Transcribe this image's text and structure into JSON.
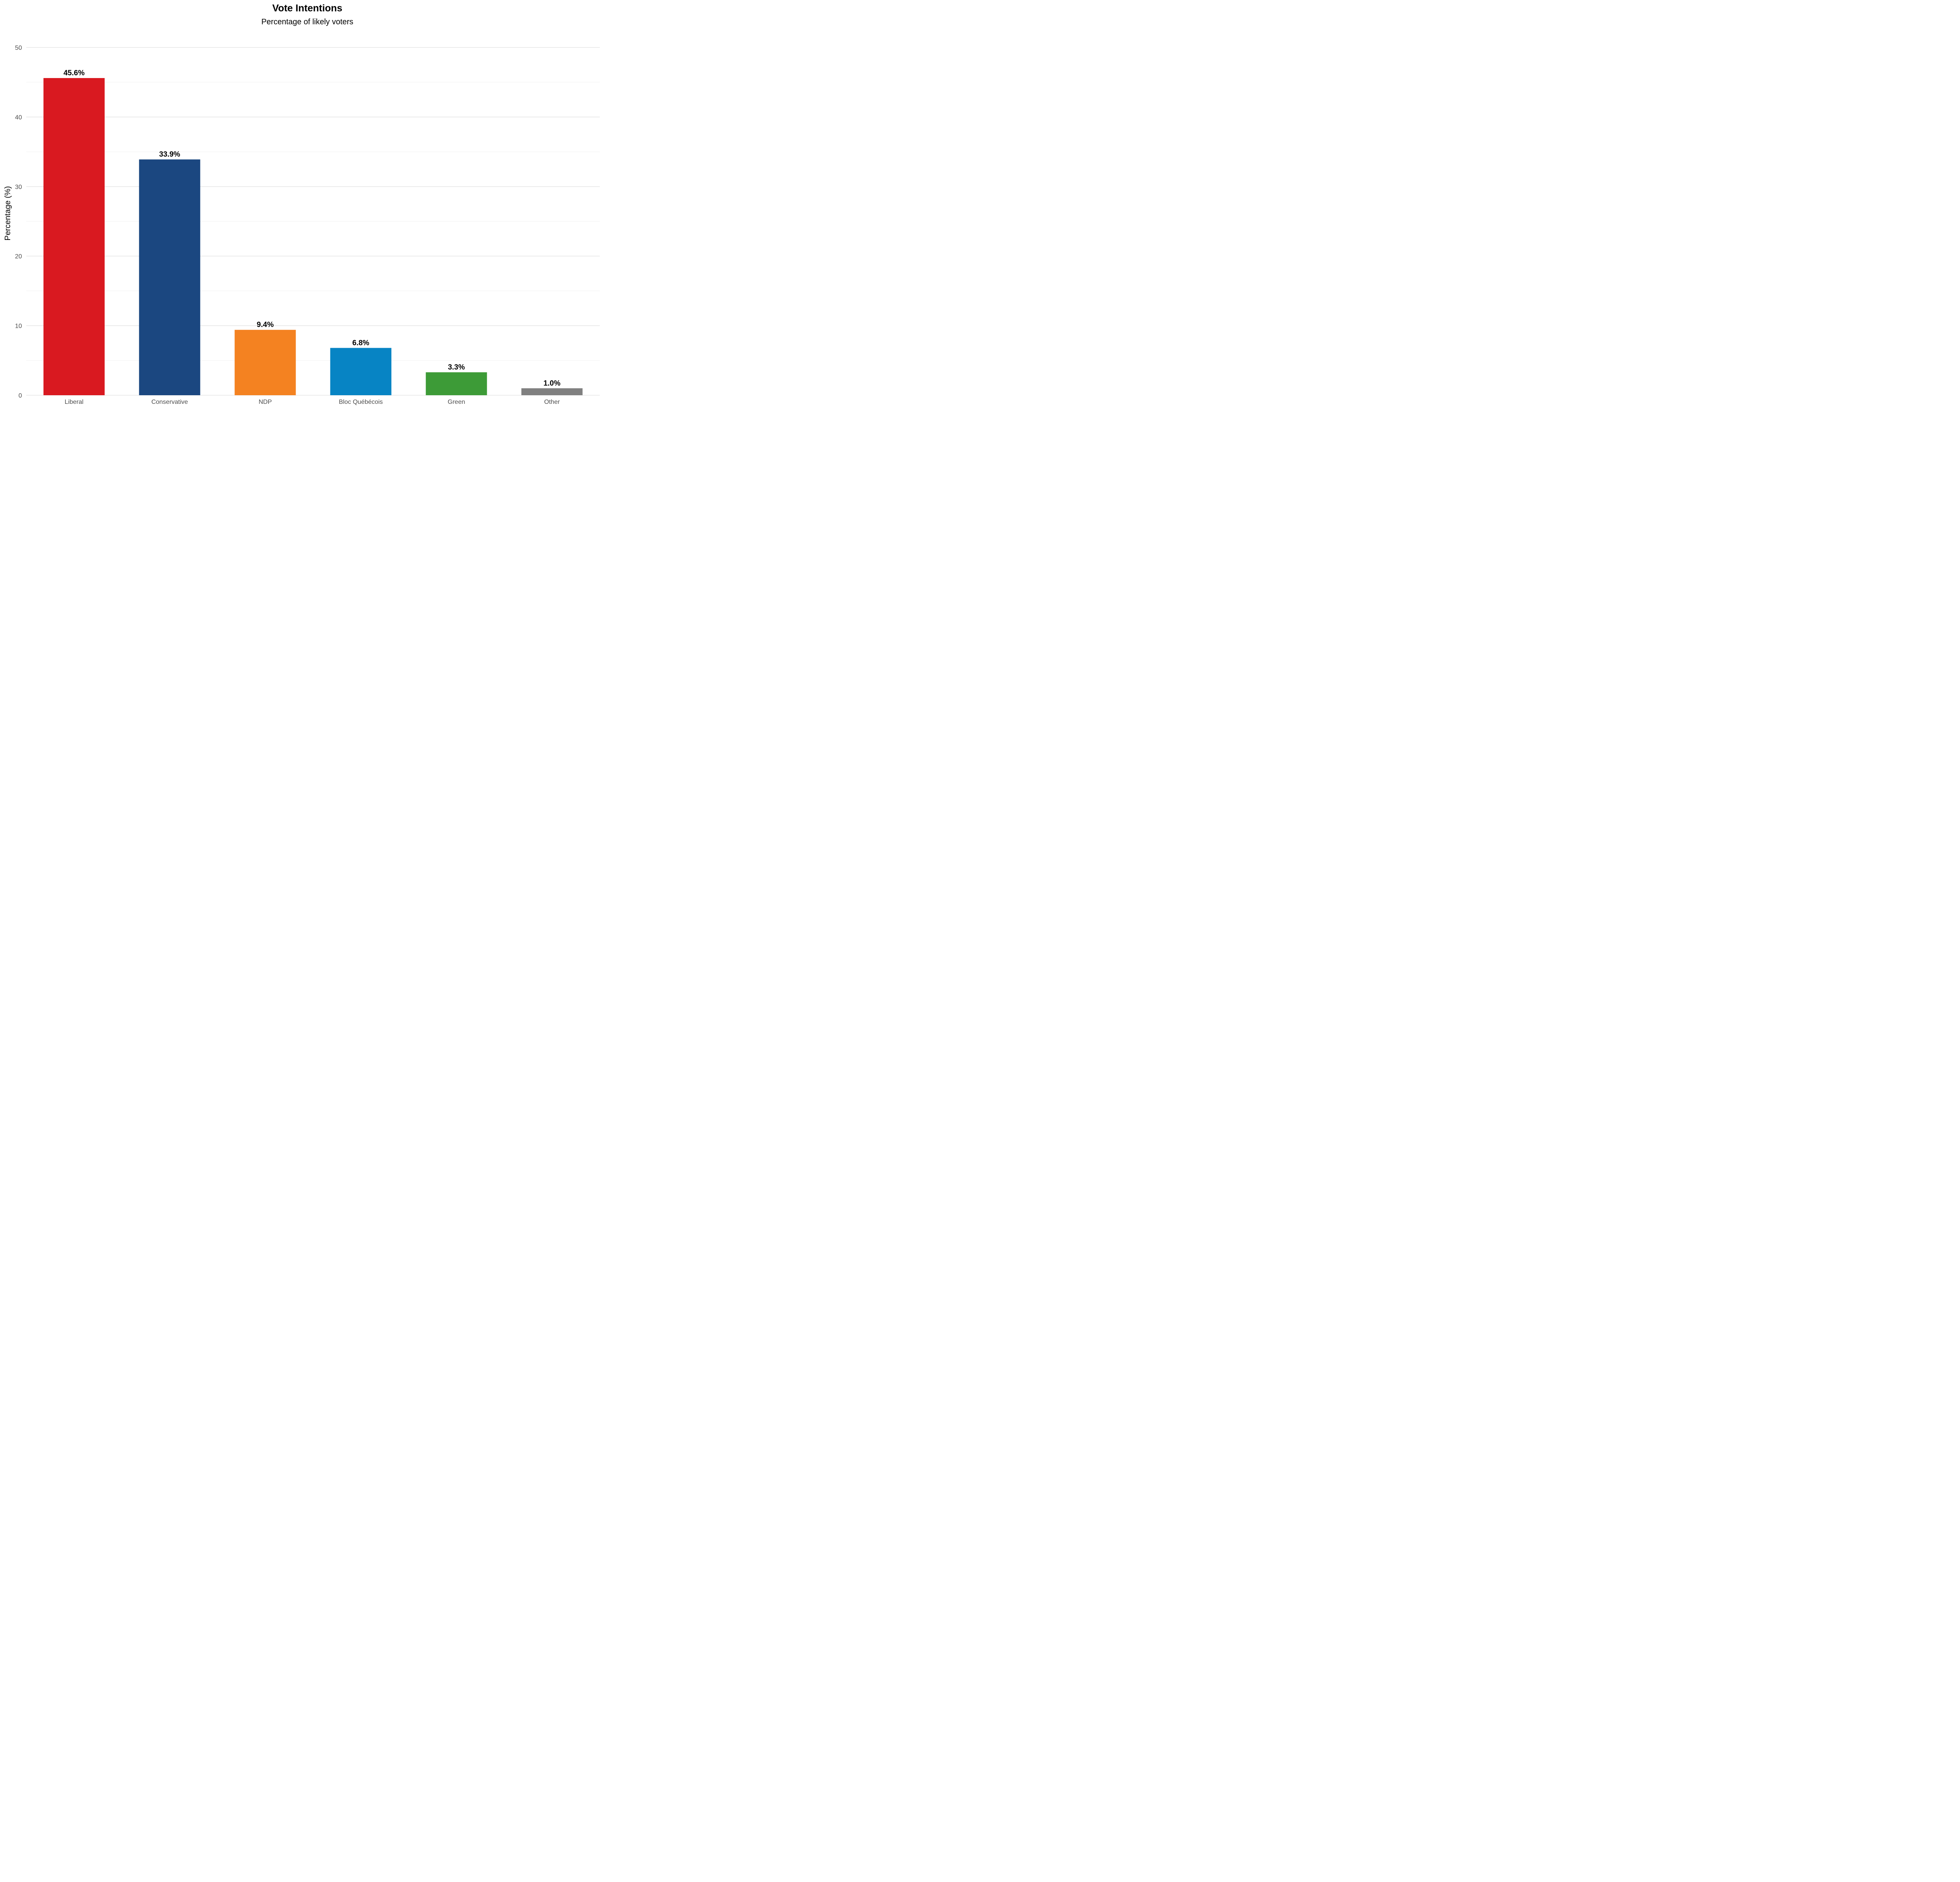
{
  "chart_data": {
    "type": "bar",
    "title": "Vote Intentions",
    "subtitle": "Percentage of likely voters",
    "xlabel": "",
    "ylabel": "Percentage (%)",
    "ylim": [
      0,
      50
    ],
    "yticks": [
      0,
      10,
      20,
      30,
      40,
      50
    ],
    "grid": true,
    "legend": "none",
    "categories": [
      "Liberal",
      "Conservative",
      "NDP",
      "Bloc Québécois",
      "Green",
      "Other"
    ],
    "values": [
      45.6,
      33.9,
      9.4,
      6.8,
      3.3,
      1.0
    ],
    "data_labels": [
      "45.6%",
      "33.9%",
      "9.4%",
      "6.8%",
      "3.3%",
      "1.0%"
    ],
    "colors": [
      "#d91920",
      "#1b4780",
      "#f48221",
      "#0784c4",
      "#3d9b37",
      "#808080"
    ]
  }
}
